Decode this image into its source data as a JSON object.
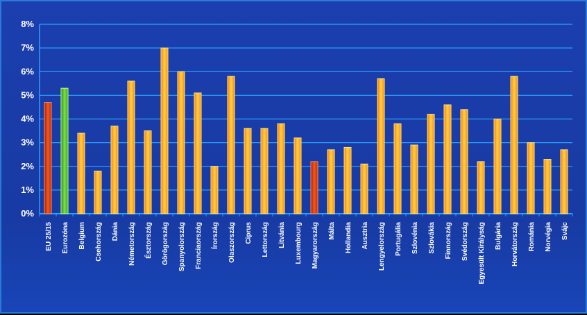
{
  "chart_data": {
    "type": "bar",
    "title": "",
    "xlabel": "",
    "ylabel": "",
    "ylim": [
      0,
      8
    ],
    "yticks": [
      "0%",
      "1%",
      "2%",
      "3%",
      "4%",
      "5%",
      "6%",
      "7%",
      "8%"
    ],
    "grid": true,
    "categories": [
      "EU 25/15",
      "Eurozóna",
      "Belgium",
      "Csehország",
      "Dánia",
      "Németország",
      "Észtország",
      "Görögország",
      "Spanyolország",
      "Franciaország",
      "Írország",
      "Olaszország",
      "Ciprus",
      "Lettország",
      "Litvánia",
      "Luxembourg",
      "Magyarország",
      "Málta",
      "Hollandia",
      "Ausztria",
      "Lengyelország",
      "Portugália",
      "Szlovénia",
      "Szlovákia",
      "Finnország",
      "Svédország",
      "Egyesült Királyság",
      "Bulgária",
      "Horvátország",
      "Románia",
      "Norvégia",
      "Svájc"
    ],
    "values": [
      4.7,
      5.3,
      3.4,
      1.8,
      3.7,
      5.6,
      3.5,
      7.0,
      6.0,
      5.1,
      2.0,
      5.8,
      3.6,
      3.6,
      3.8,
      3.2,
      2.2,
      2.7,
      2.8,
      2.1,
      5.7,
      3.8,
      2.9,
      4.2,
      4.6,
      4.4,
      2.2,
      4.0,
      5.8,
      3.0,
      2.3,
      2.7
    ],
    "highlight": {
      "EU 25/15": "red",
      "Eurozóna": "green",
      "Magyarország": "red"
    }
  },
  "colors": {
    "background": "#1a3ca8",
    "grid": "#2aa0ff",
    "bar_default": "#ffb000",
    "bar_red": "#e04010",
    "bar_green": "#50c030",
    "text": "#ffffff"
  }
}
